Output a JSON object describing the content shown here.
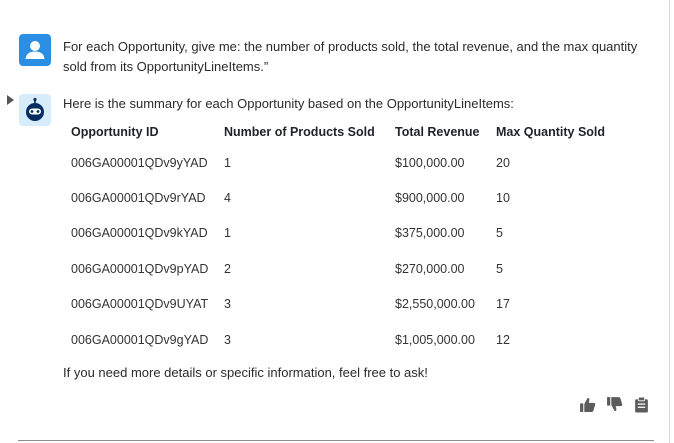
{
  "conversation": {
    "user_message": "For each Opportunity, give me: the number of products sold, the total revenue, and the max quantity sold from its OpportunityLineItems.”",
    "bot_intro": "Here is the summary for each Opportunity based on the OpportunityLineItems:",
    "table": {
      "headers": [
        "Opportunity ID",
        "Number of Products Sold",
        "Total Revenue",
        "Max Quantity Sold"
      ],
      "rows": [
        [
          "006GA00001QDv9yYAD",
          "1",
          "$100,000.00",
          "20"
        ],
        [
          "006GA00001QDv9rYAD",
          "4",
          "$900,000.00",
          "10"
        ],
        [
          "006GA00001QDv9kYAD",
          "1",
          "$375,000.00",
          "5"
        ],
        [
          "006GA00001QDv9pYAD",
          "2",
          "$270,000.00",
          "5"
        ],
        [
          "006GA00001QDv9UYAT",
          "3",
          "$2,550,000.00",
          "17"
        ],
        [
          "006GA00001QDv9gYAD",
          "3",
          "$1,005,000.00",
          "12"
        ]
      ]
    },
    "bot_footer": "If you need more details or specific information, feel free to ask!"
  },
  "icons": {
    "user_avatar": "user-icon",
    "bot_avatar": "bot-icon",
    "expand": "caret-right-icon",
    "like": "thumbs-up-icon",
    "dislike": "thumbs-down-icon",
    "copy": "clipboard-icon"
  },
  "colors": {
    "user_avatar_bg": "#2a8fe3",
    "bot_avatar_bg": "#d6ecfb",
    "bot_icon": "#032d60",
    "action_icon": "#5c5c5c"
  }
}
